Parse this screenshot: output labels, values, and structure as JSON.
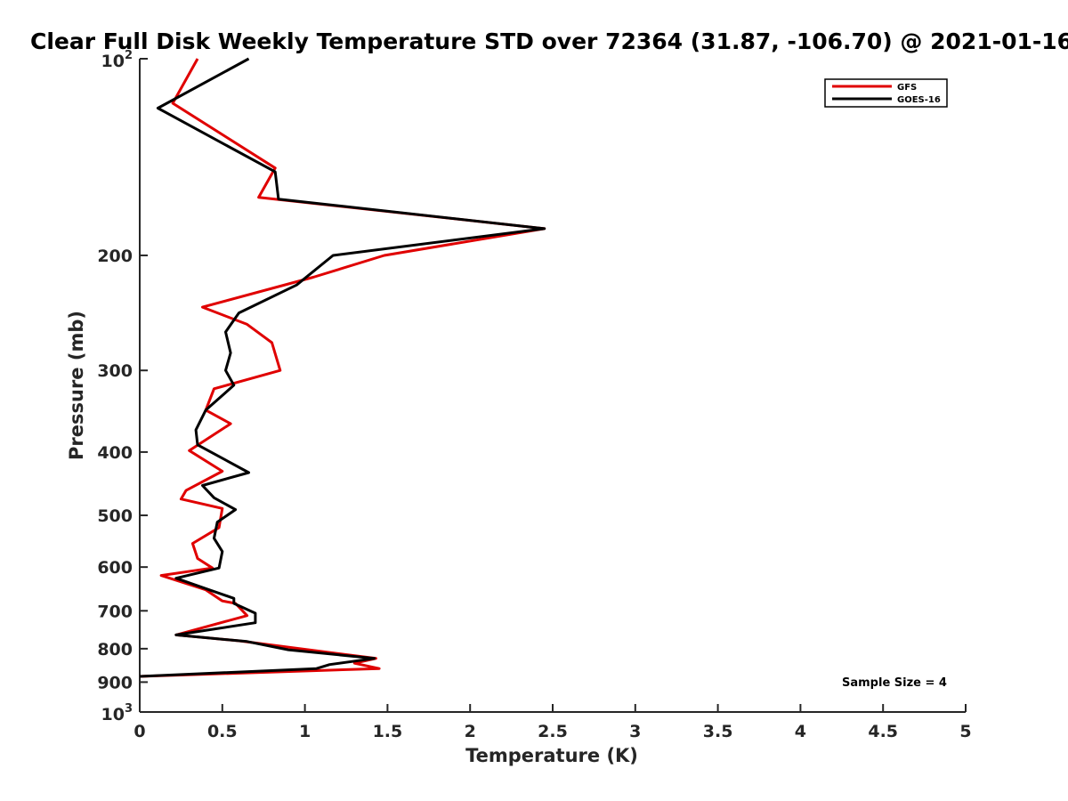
{
  "chart_data": {
    "type": "line",
    "title": "Clear Full Disk Weekly Temperature STD over 72364 (31.87, -106.70) @ 2021-01-16",
    "xlabel": "Temperature (K)",
    "ylabel": "Pressure (mb)",
    "xlim": [
      0,
      5
    ],
    "ylim": [
      100,
      1000
    ],
    "y_scale": "log",
    "y_reversed": true,
    "grid": false,
    "legend_position": "top-right",
    "x_ticks": [
      0,
      0.5,
      1,
      1.5,
      2,
      2.5,
      3,
      3.5,
      4,
      4.5,
      5
    ],
    "x_tick_labels": [
      "0",
      "0.5",
      "1",
      "1.5",
      "2",
      "2.5",
      "3",
      "3.5",
      "4",
      "4.5",
      "5"
    ],
    "y_ticks": [
      {
        "value": 100,
        "base": "10",
        "exp": "2",
        "label": ""
      },
      {
        "value": 200,
        "base": "",
        "exp": "",
        "label": "200"
      },
      {
        "value": 300,
        "base": "",
        "exp": "",
        "label": "300"
      },
      {
        "value": 400,
        "base": "",
        "exp": "",
        "label": "400"
      },
      {
        "value": 500,
        "base": "",
        "exp": "",
        "label": "500"
      },
      {
        "value": 600,
        "base": "",
        "exp": "",
        "label": "600"
      },
      {
        "value": 700,
        "base": "",
        "exp": "",
        "label": "700"
      },
      {
        "value": 800,
        "base": "",
        "exp": "",
        "label": "800"
      },
      {
        "value": 900,
        "base": "",
        "exp": "",
        "label": "900"
      },
      {
        "value": 1000,
        "base": "10",
        "exp": "3",
        "label": ""
      }
    ],
    "series": [
      {
        "name": "GFS",
        "color": "#e00000",
        "points": [
          [
            0.35,
            100
          ],
          [
            0.2,
            117
          ],
          [
            0.82,
            147
          ],
          [
            0.72,
            163
          ],
          [
            2.45,
            182
          ],
          [
            1.48,
            200
          ],
          [
            1.05,
            216
          ],
          [
            0.38,
            240
          ],
          [
            0.65,
            255
          ],
          [
            0.8,
            272
          ],
          [
            0.85,
            300
          ],
          [
            0.45,
            320
          ],
          [
            0.4,
            345
          ],
          [
            0.55,
            362
          ],
          [
            0.3,
            398
          ],
          [
            0.5,
            428
          ],
          [
            0.28,
            458
          ],
          [
            0.25,
            472
          ],
          [
            0.5,
            488
          ],
          [
            0.48,
            522
          ],
          [
            0.32,
            552
          ],
          [
            0.35,
            582
          ],
          [
            0.44,
            602
          ],
          [
            0.13,
            618
          ],
          [
            0.4,
            650
          ],
          [
            0.5,
            676
          ],
          [
            0.58,
            682
          ],
          [
            0.65,
            712
          ],
          [
            0.22,
            762
          ],
          [
            0.6,
            778
          ],
          [
            1.43,
            828
          ],
          [
            1.3,
            842
          ],
          [
            1.45,
            858
          ],
          [
            0.0,
            882
          ]
        ]
      },
      {
        "name": "GOES-16",
        "color": "#000000",
        "points": [
          [
            0.66,
            100
          ],
          [
            0.11,
            119
          ],
          [
            0.82,
            149
          ],
          [
            0.84,
            164
          ],
          [
            2.45,
            182
          ],
          [
            1.17,
            200
          ],
          [
            0.95,
            222
          ],
          [
            0.6,
            245
          ],
          [
            0.52,
            262
          ],
          [
            0.55,
            282
          ],
          [
            0.52,
            300
          ],
          [
            0.57,
            316
          ],
          [
            0.4,
            345
          ],
          [
            0.34,
            370
          ],
          [
            0.35,
            390
          ],
          [
            0.66,
            430
          ],
          [
            0.38,
            450
          ],
          [
            0.45,
            470
          ],
          [
            0.58,
            490
          ],
          [
            0.47,
            512
          ],
          [
            0.45,
            542
          ],
          [
            0.5,
            568
          ],
          [
            0.48,
            602
          ],
          [
            0.22,
            624
          ],
          [
            0.42,
            650
          ],
          [
            0.57,
            670
          ],
          [
            0.57,
            682
          ],
          [
            0.7,
            706
          ],
          [
            0.7,
            730
          ],
          [
            0.22,
            762
          ],
          [
            0.65,
            780
          ],
          [
            0.9,
            803
          ],
          [
            1.42,
            828
          ],
          [
            1.15,
            846
          ],
          [
            1.07,
            858
          ],
          [
            0.0,
            882
          ]
        ]
      }
    ],
    "annotation": "Sample Size = 4"
  }
}
